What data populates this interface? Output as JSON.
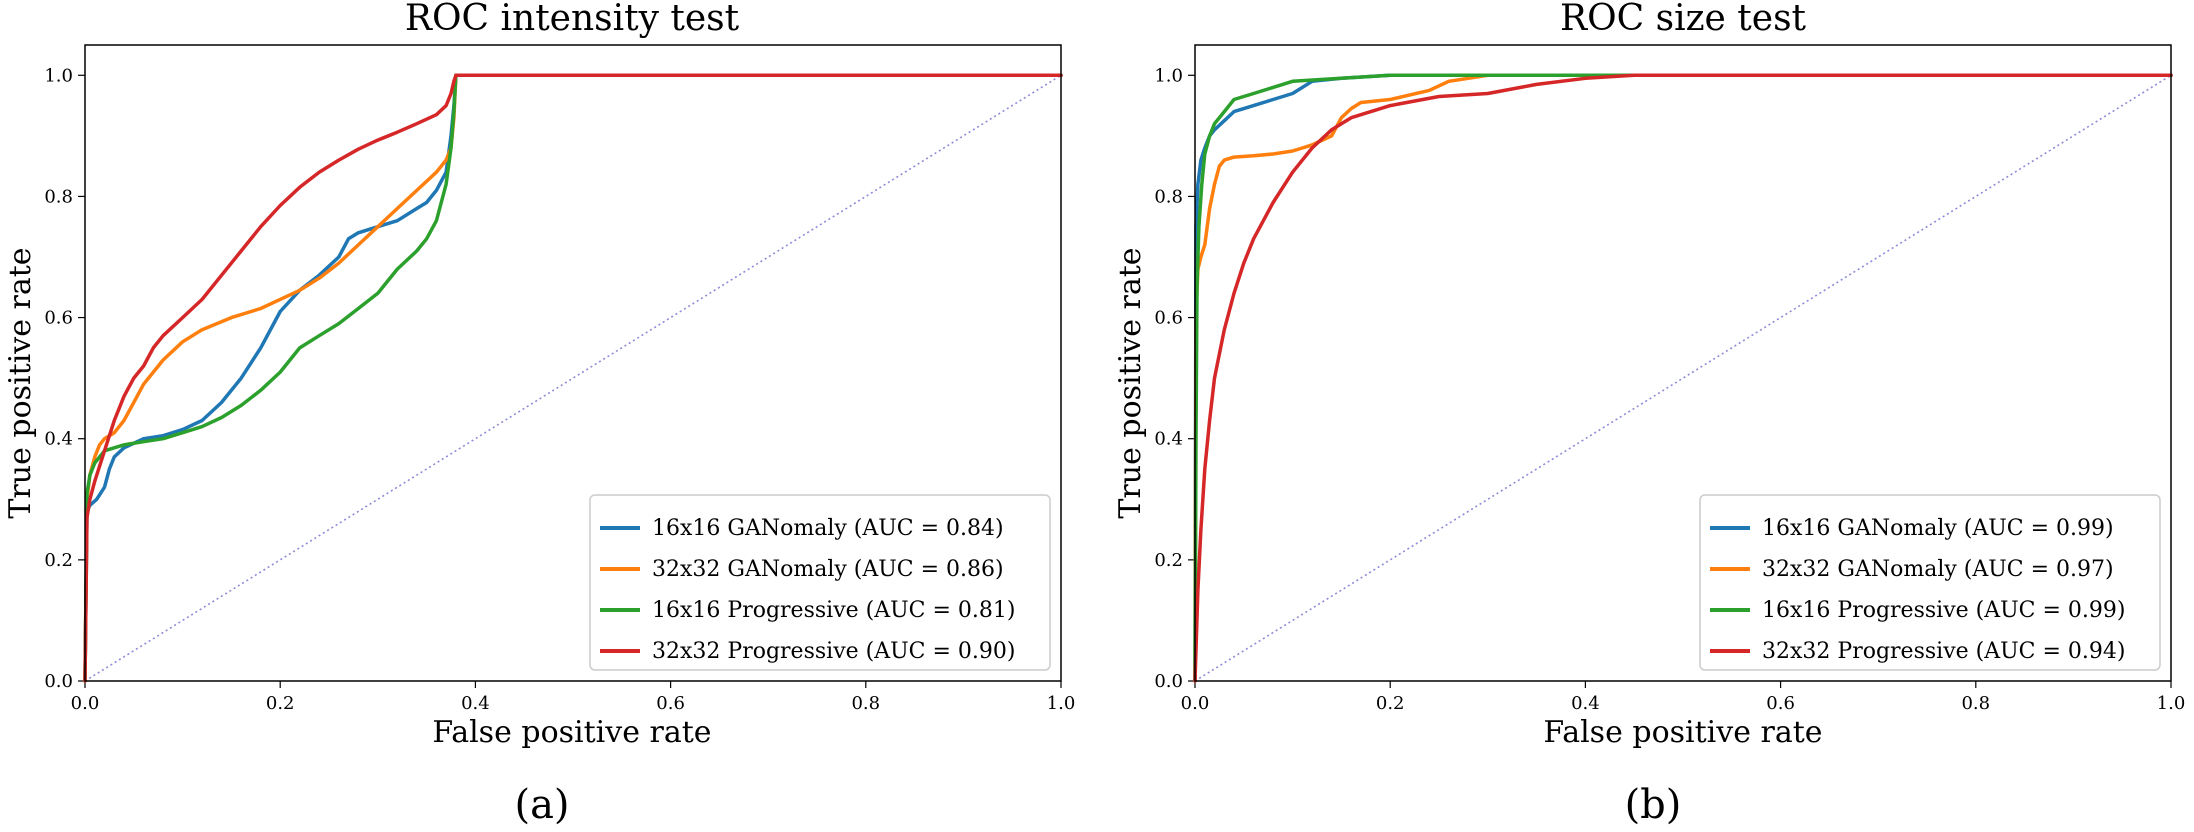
{
  "colors": {
    "blue": "#1f77b4",
    "orange": "#ff7f0e",
    "green": "#2ca02c",
    "red": "#d62728",
    "diagonal": "#8c8cd8"
  },
  "chart_data": [
    {
      "type": "line",
      "caption": "(a)",
      "title": "ROC intensity test",
      "xlabel": "False positive rate",
      "ylabel": "True positive rate",
      "xlim": [
        0,
        1
      ],
      "ylim": [
        0,
        1.05
      ],
      "xticks": [
        0.0,
        0.2,
        0.4,
        0.6,
        0.8,
        1.0
      ],
      "yticks": [
        0.0,
        0.2,
        0.4,
        0.6,
        0.8,
        1.0
      ],
      "xtick_labels": [
        "0.0",
        "0.2",
        "0.4",
        "0.6",
        "0.8",
        "1.0"
      ],
      "ytick_labels": [
        "0.0",
        "0.2",
        "0.4",
        "0.6",
        "0.8",
        "1.0"
      ],
      "legend_position": "bottom-right",
      "diagonal": [
        [
          0,
          0
        ],
        [
          1,
          1
        ]
      ],
      "series": [
        {
          "name": "16x16 GANomaly (AUC = 0.84)",
          "color": "blue",
          "x": [
            0,
            0.002,
            0.005,
            0.012,
            0.02,
            0.025,
            0.03,
            0.04,
            0.06,
            0.08,
            0.1,
            0.12,
            0.14,
            0.16,
            0.18,
            0.2,
            0.22,
            0.24,
            0.26,
            0.27,
            0.28,
            0.3,
            0.32,
            0.34,
            0.35,
            0.36,
            0.37,
            0.375,
            0.378,
            0.38,
            1.0
          ],
          "y": [
            0,
            0.28,
            0.29,
            0.3,
            0.32,
            0.35,
            0.37,
            0.385,
            0.4,
            0.405,
            0.415,
            0.43,
            0.46,
            0.5,
            0.55,
            0.61,
            0.645,
            0.67,
            0.7,
            0.73,
            0.74,
            0.75,
            0.76,
            0.78,
            0.79,
            0.81,
            0.84,
            0.9,
            0.95,
            1.0,
            1.0
          ]
        },
        {
          "name": "32x32 GANomaly (AUC = 0.86)",
          "color": "orange",
          "x": [
            0,
            0.002,
            0.005,
            0.01,
            0.015,
            0.02,
            0.03,
            0.04,
            0.05,
            0.06,
            0.08,
            0.1,
            0.12,
            0.15,
            0.18,
            0.2,
            0.22,
            0.24,
            0.26,
            0.28,
            0.3,
            0.32,
            0.34,
            0.36,
            0.37,
            0.375,
            0.378,
            0.38,
            1.0
          ],
          "y": [
            0,
            0.3,
            0.34,
            0.37,
            0.39,
            0.4,
            0.41,
            0.43,
            0.46,
            0.49,
            0.53,
            0.56,
            0.58,
            0.6,
            0.615,
            0.63,
            0.645,
            0.665,
            0.69,
            0.72,
            0.75,
            0.78,
            0.81,
            0.84,
            0.86,
            0.88,
            0.93,
            1.0,
            1.0
          ]
        },
        {
          "name": "16x16 Progressive (AUC = 0.81)",
          "color": "green",
          "x": [
            0,
            0.002,
            0.005,
            0.01,
            0.02,
            0.04,
            0.06,
            0.08,
            0.1,
            0.12,
            0.14,
            0.16,
            0.18,
            0.2,
            0.22,
            0.24,
            0.26,
            0.28,
            0.3,
            0.32,
            0.34,
            0.35,
            0.36,
            0.37,
            0.375,
            0.378,
            0.38,
            1.0
          ],
          "y": [
            0,
            0.31,
            0.34,
            0.36,
            0.38,
            0.39,
            0.395,
            0.4,
            0.41,
            0.42,
            0.435,
            0.455,
            0.48,
            0.51,
            0.55,
            0.57,
            0.59,
            0.615,
            0.64,
            0.68,
            0.71,
            0.73,
            0.76,
            0.82,
            0.88,
            0.94,
            1.0,
            1.0
          ]
        },
        {
          "name": "32x32 Progressive (AUC = 0.90)",
          "color": "red",
          "x": [
            0,
            0.002,
            0.005,
            0.01,
            0.02,
            0.03,
            0.04,
            0.05,
            0.06,
            0.07,
            0.08,
            0.1,
            0.12,
            0.14,
            0.16,
            0.18,
            0.2,
            0.22,
            0.24,
            0.26,
            0.28,
            0.3,
            0.32,
            0.34,
            0.36,
            0.37,
            0.375,
            0.378,
            0.38,
            1.0
          ],
          "y": [
            0,
            0.27,
            0.3,
            0.33,
            0.38,
            0.43,
            0.47,
            0.5,
            0.52,
            0.55,
            0.57,
            0.6,
            0.63,
            0.67,
            0.71,
            0.75,
            0.785,
            0.815,
            0.84,
            0.86,
            0.878,
            0.893,
            0.906,
            0.92,
            0.935,
            0.95,
            0.97,
            0.99,
            1.0,
            1.0
          ]
        }
      ]
    },
    {
      "type": "line",
      "caption": "(b)",
      "title": "ROC size test",
      "xlabel": "False positive rate",
      "ylabel": "True positive rate",
      "xlim": [
        0,
        1
      ],
      "ylim": [
        0,
        1.05
      ],
      "xticks": [
        0.0,
        0.2,
        0.4,
        0.6,
        0.8,
        1.0
      ],
      "yticks": [
        0.0,
        0.2,
        0.4,
        0.6,
        0.8,
        1.0
      ],
      "xtick_labels": [
        "0.0",
        "0.2",
        "0.4",
        "0.6",
        "0.8",
        "1.0"
      ],
      "ytick_labels": [
        "0.0",
        "0.2",
        "0.4",
        "0.6",
        "0.8",
        "1.0"
      ],
      "legend_position": "bottom-right",
      "diagonal": [
        [
          0,
          0
        ],
        [
          1,
          1
        ]
      ],
      "series": [
        {
          "name": "16x16 GANomaly (AUC = 0.99)",
          "color": "blue",
          "x": [
            0,
            0.001,
            0.003,
            0.006,
            0.01,
            0.015,
            0.02,
            0.03,
            0.04,
            0.06,
            0.08,
            0.1,
            0.12,
            0.15,
            0.2,
            0.3,
            1.0
          ],
          "y": [
            0,
            0.75,
            0.82,
            0.86,
            0.88,
            0.9,
            0.91,
            0.925,
            0.94,
            0.95,
            0.96,
            0.97,
            0.99,
            0.995,
            1.0,
            1.0,
            1.0
          ]
        },
        {
          "name": "32x32 GANomaly (AUC = 0.97)",
          "color": "orange",
          "x": [
            0,
            0.001,
            0.003,
            0.006,
            0.008,
            0.01,
            0.015,
            0.02,
            0.025,
            0.03,
            0.04,
            0.06,
            0.08,
            0.1,
            0.12,
            0.14,
            0.15,
            0.16,
            0.17,
            0.2,
            0.24,
            0.26,
            0.28,
            0.3,
            1.0
          ],
          "y": [
            0,
            0.6,
            0.68,
            0.7,
            0.71,
            0.72,
            0.78,
            0.82,
            0.85,
            0.86,
            0.865,
            0.867,
            0.87,
            0.875,
            0.885,
            0.9,
            0.93,
            0.945,
            0.955,
            0.96,
            0.975,
            0.99,
            0.995,
            1.0,
            1.0
          ]
        },
        {
          "name": "16x16 Progressive (AUC = 0.99)",
          "color": "green",
          "x": [
            0,
            0.001,
            0.002,
            0.004,
            0.007,
            0.01,
            0.015,
            0.02,
            0.03,
            0.04,
            0.06,
            0.08,
            0.1,
            0.15,
            0.2,
            0.3,
            1.0
          ],
          "y": [
            0,
            0.4,
            0.65,
            0.75,
            0.82,
            0.87,
            0.9,
            0.92,
            0.94,
            0.96,
            0.97,
            0.98,
            0.99,
            0.995,
            1.0,
            1.0,
            1.0
          ]
        },
        {
          "name": "32x32 Progressive (AUC = 0.94)",
          "color": "red",
          "x": [
            0,
            0.003,
            0.006,
            0.01,
            0.015,
            0.02,
            0.03,
            0.04,
            0.05,
            0.06,
            0.08,
            0.1,
            0.12,
            0.14,
            0.16,
            0.2,
            0.25,
            0.3,
            0.35,
            0.4,
            0.45,
            1.0
          ],
          "y": [
            0,
            0.15,
            0.25,
            0.35,
            0.43,
            0.5,
            0.58,
            0.64,
            0.69,
            0.73,
            0.79,
            0.84,
            0.88,
            0.91,
            0.93,
            0.95,
            0.965,
            0.97,
            0.985,
            0.995,
            1.0,
            1.0
          ]
        }
      ]
    }
  ]
}
